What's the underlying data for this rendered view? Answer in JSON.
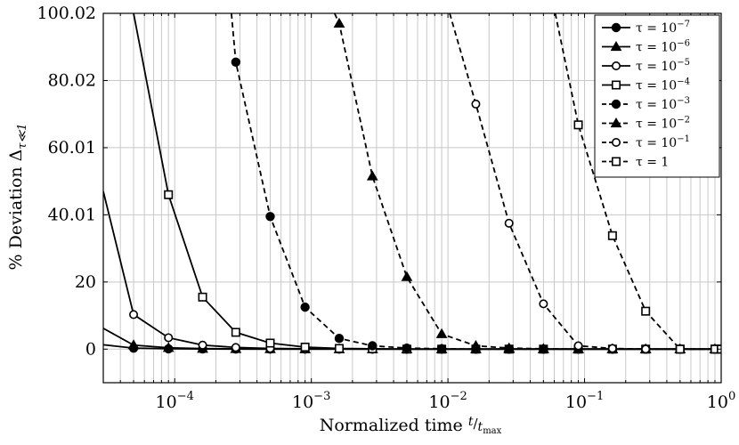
{
  "chart_data": {
    "type": "line",
    "xlabel": "Normalized time t/tmax",
    "ylabel": "% Deviation Δτ≪1",
    "x_scale": "log",
    "xlim": [
      3e-05,
      1
    ],
    "ylim": [
      -10,
      100.02
    ],
    "grid": true,
    "legend_position": "top-right",
    "x_ticks": [
      {
        "value": 0.0001,
        "base": "10",
        "exp": "−4"
      },
      {
        "value": 0.001,
        "base": "10",
        "exp": "−3"
      },
      {
        "value": 0.01,
        "base": "10",
        "exp": "−2"
      },
      {
        "value": 0.1,
        "base": "10",
        "exp": "−1"
      },
      {
        "value": 1,
        "base": "10",
        "exp": "0"
      }
    ],
    "y_ticks": [
      {
        "value": 0,
        "label": "0"
      },
      {
        "value": 20,
        "label": "20"
      },
      {
        "value": 40.01,
        "label": "40.01"
      },
      {
        "value": 60.01,
        "label": "60.01"
      },
      {
        "value": 80.02,
        "label": "80.02"
      },
      {
        "value": 100.02,
        "label": "100.02"
      }
    ],
    "series": [
      {
        "name": "τ = 10−7",
        "legend_base": "τ = 10",
        "legend_exp": "−7",
        "marker": "circle-filled",
        "dash": false,
        "x": [
          3e-05,
          5e-05,
          9e-05,
          0.00016,
          0.00028,
          0.0005,
          0.0009,
          0.0016,
          0.0028,
          0.005,
          0.009,
          0.016,
          0.028,
          0.05,
          0.09,
          0.16,
          0.28,
          0.5,
          0.9,
          1
        ],
        "y": [
          1.3,
          0.3,
          0.1,
          0.05,
          0.02,
          0.01,
          0.01,
          0,
          0,
          0,
          0,
          0,
          0,
          0,
          0,
          0,
          0,
          0,
          0,
          0
        ]
      },
      {
        "name": "τ = 10−6",
        "legend_base": "τ = 10",
        "legend_exp": "−6",
        "marker": "triangle-filled",
        "dash": false,
        "x": [
          3e-05,
          5e-05,
          9e-05,
          0.00016,
          0.00028,
          0.0005,
          0.0009,
          0.0016,
          0.0028,
          0.005,
          0.009,
          0.016,
          0.028,
          0.05,
          0.09,
          0.16,
          0.28,
          0.5,
          0.9,
          1
        ],
        "y": [
          6.2,
          1.2,
          0.4,
          0.15,
          0.06,
          0.03,
          0.01,
          0,
          0,
          0,
          0,
          0,
          0,
          0,
          0,
          0,
          0,
          0,
          0,
          0
        ]
      },
      {
        "name": "τ = 10−5",
        "legend_base": "τ = 10",
        "legend_exp": "−5",
        "marker": "circle-open",
        "dash": false,
        "x": [
          3e-05,
          5e-05,
          9e-05,
          0.00016,
          0.00028,
          0.0005,
          0.0009,
          0.0016,
          0.0028,
          0.005,
          0.009,
          0.016,
          0.028,
          0.05,
          0.09,
          0.16,
          0.28,
          0.5,
          0.9,
          1
        ],
        "y": [
          47,
          10.3,
          3.4,
          1.2,
          0.5,
          0.2,
          0.1,
          0.05,
          0,
          0,
          0,
          0,
          0,
          0,
          0,
          0,
          0,
          0,
          0,
          0
        ]
      },
      {
        "name": "τ = 10−4",
        "legend_base": "τ = 10",
        "legend_exp": "−4",
        "marker": "square-open",
        "dash": false,
        "x": [
          5e-05,
          9e-05,
          0.00016,
          0.00028,
          0.0005,
          0.0009,
          0.0016,
          0.0028,
          0.005,
          0.009,
          0.016,
          0.028,
          0.05,
          0.09,
          0.16,
          0.28,
          0.5,
          0.9,
          1
        ],
        "y": [
          100.02,
          46,
          15.5,
          5,
          1.8,
          0.6,
          0.2,
          0.1,
          0,
          0,
          0,
          0,
          0,
          0,
          0,
          0,
          0,
          0,
          0
        ]
      },
      {
        "name": "τ = 10−3",
        "legend_base": "τ = 10",
        "legend_exp": "−3",
        "marker": "circle-filled",
        "dash": true,
        "x": [
          0.00026,
          0.00028,
          0.0005,
          0.0009,
          0.0016,
          0.0028,
          0.005,
          0.009,
          0.016,
          0.028,
          0.05,
          0.09,
          0.16,
          0.28,
          0.5,
          0.9,
          1
        ],
        "y": [
          100.02,
          85.5,
          39.5,
          12.5,
          3.2,
          1,
          0.3,
          0.1,
          0,
          0,
          0,
          0,
          0,
          0,
          0,
          0,
          0
        ]
      },
      {
        "name": "τ = 10−2",
        "legend_base": "τ = 10",
        "legend_exp": "−2",
        "marker": "triangle-filled",
        "dash": true,
        "x": [
          0.00148,
          0.0016,
          0.0028,
          0.005,
          0.009,
          0.016,
          0.028,
          0.05,
          0.09,
          0.16,
          0.28,
          0.5,
          0.9,
          1
        ],
        "y": [
          100.02,
          97,
          51.5,
          21.5,
          4.5,
          1,
          0.3,
          0.1,
          0,
          0,
          0,
          0,
          0,
          0
        ]
      },
      {
        "name": "τ = 10−1",
        "legend_base": "τ = 10",
        "legend_exp": "−1",
        "marker": "circle-open",
        "dash": true,
        "x": [
          0.0103,
          0.016,
          0.028,
          0.05,
          0.09,
          0.16,
          0.28,
          0.5,
          0.9,
          1
        ],
        "y": [
          100.02,
          73,
          37.5,
          13.5,
          1,
          0.2,
          0,
          0,
          0,
          0
        ]
      },
      {
        "name": "τ = 1",
        "legend_base": "τ = 1",
        "legend_exp": "",
        "marker": "square-open",
        "dash": true,
        "x": [
          0.061,
          0.09,
          0.16,
          0.28,
          0.5,
          0.9,
          1
        ],
        "y": [
          100.02,
          66.8,
          33.8,
          11.3,
          0,
          0,
          0
        ]
      }
    ]
  },
  "labels": {
    "xlabel_main": "Normalized time ",
    "xlabel_num": "t",
    "xlabel_den": "t",
    "xlabel_den_sub": "max",
    "ylabel_main": "% Deviation Δ",
    "ylabel_sub": "τ≪1"
  }
}
